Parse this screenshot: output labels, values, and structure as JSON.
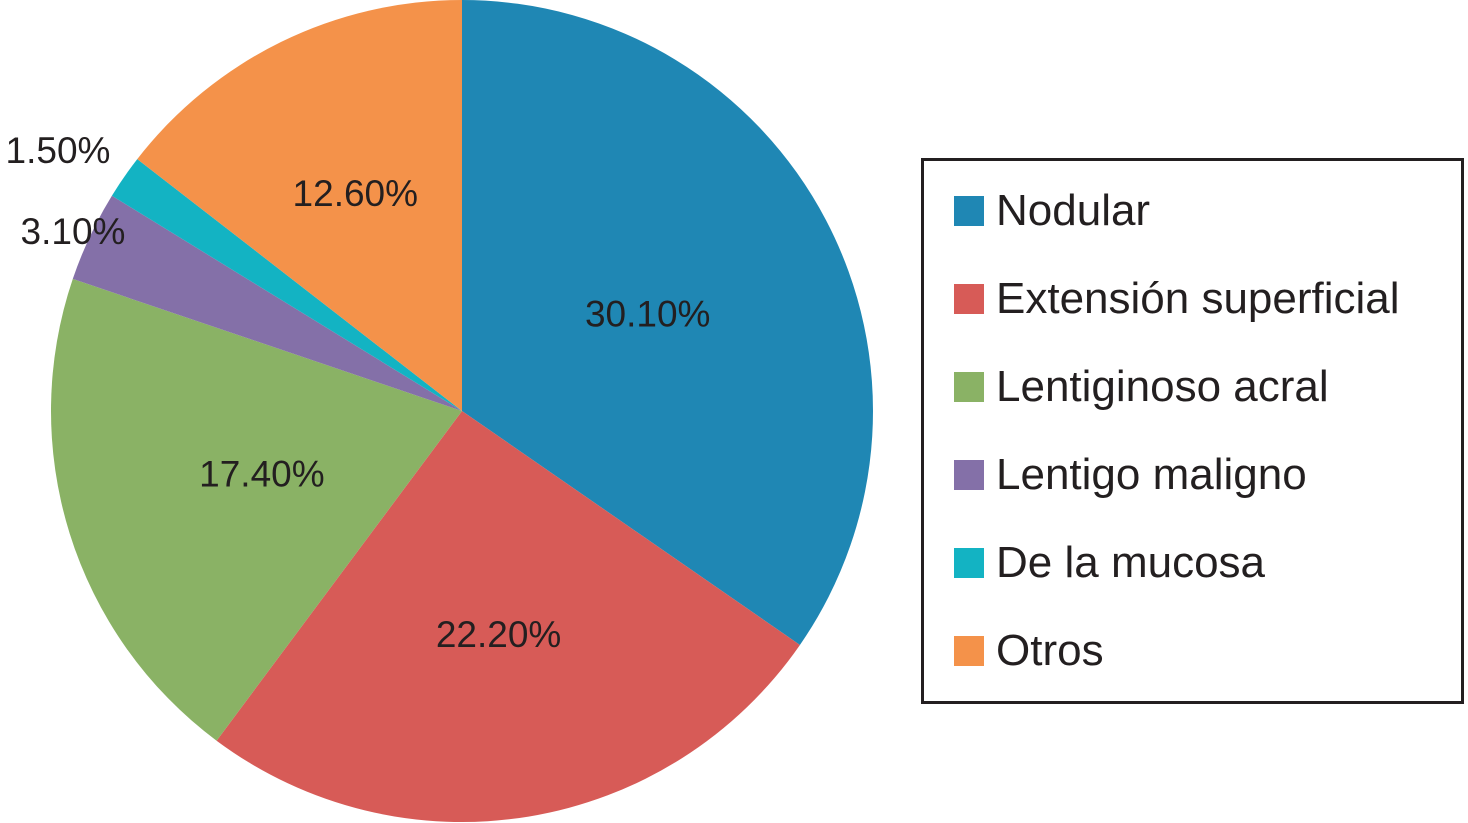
{
  "chart_data": {
    "type": "pie",
    "title": "",
    "slices": [
      {
        "label": "Nodular",
        "value": 30.1,
        "value_label": "30.10%",
        "color": "#1f87b4"
      },
      {
        "label": "Extensión superficial",
        "value": 22.2,
        "value_label": "22.20%",
        "color": "#d75b57"
      },
      {
        "label": "Lentiginoso acral",
        "value": 17.4,
        "value_label": "17.40%",
        "color": "#8ab265"
      },
      {
        "label": "Lentigo maligno",
        "value": 3.1,
        "value_label": "3.10%",
        "color": "#8470a8"
      },
      {
        "label": "De la mucosa",
        "value": 1.5,
        "value_label": "1.50%",
        "color": "#13b3c3"
      },
      {
        "label": "Otros",
        "value": 12.6,
        "value_label": "12.60%",
        "color": "#f4924a"
      }
    ],
    "legend_position": "right"
  }
}
